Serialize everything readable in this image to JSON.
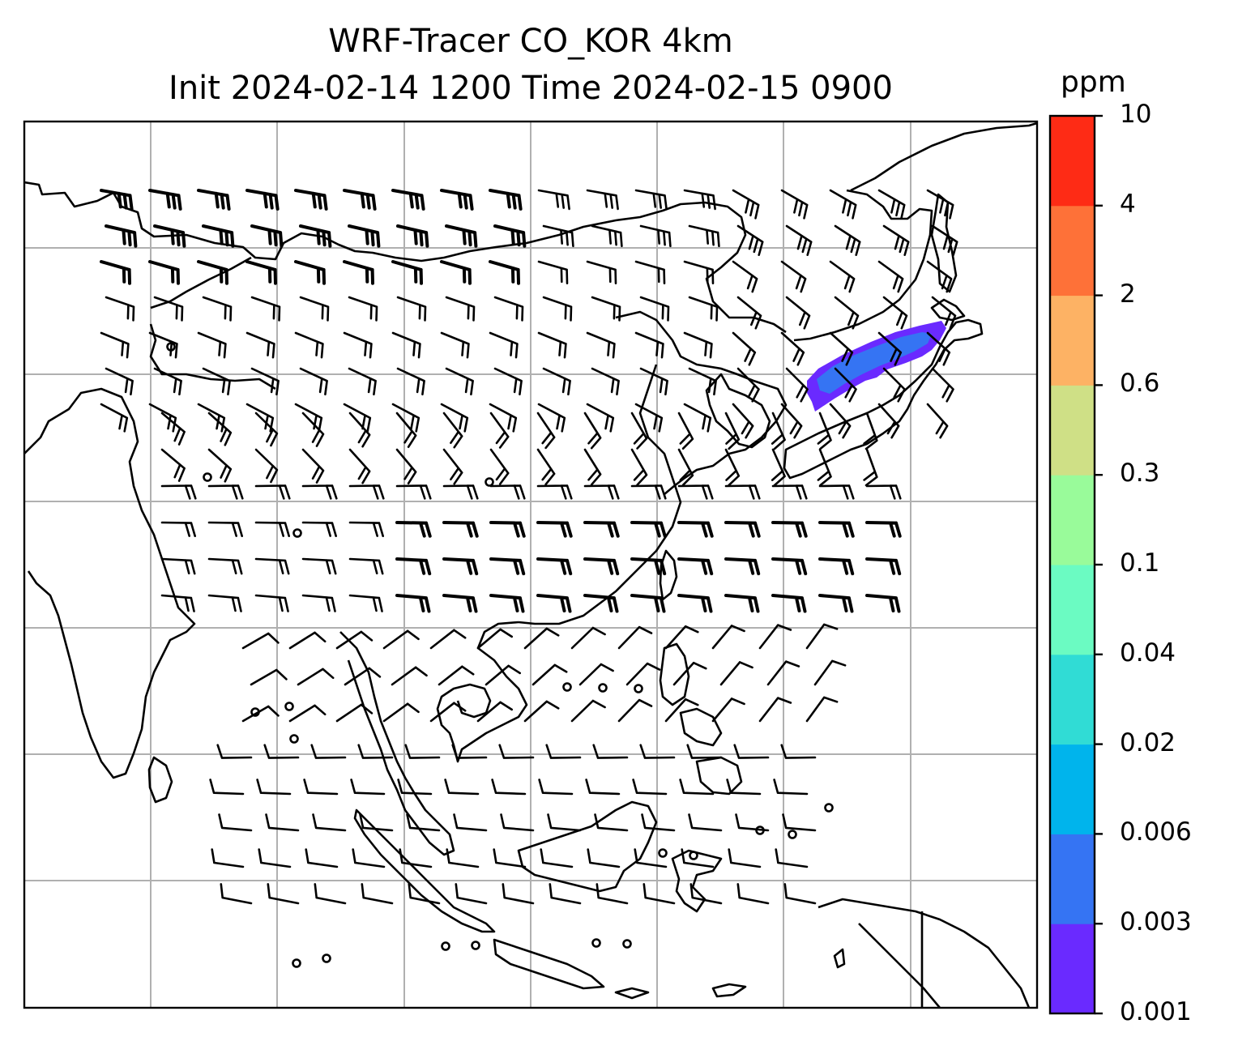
{
  "title": {
    "line1": "WRF-Tracer CO_KOR 4km",
    "line2": "Init 2024-02-14 1200 Time 2024-02-15 0900"
  },
  "colorbar": {
    "unit": "ppm",
    "tick_labels": [
      "0.001",
      "0.003",
      "0.006",
      "0.02",
      "0.04",
      "0.1",
      "0.3",
      "0.6",
      "2",
      "4",
      "10"
    ],
    "colors": [
      "#6a2aff",
      "#3574f3",
      "#00b4ec",
      "#30dcd5",
      "#6bfbc2",
      "#99fb9a",
      "#cfe086",
      "#fdb264",
      "#fe7138",
      "#fe2b15"
    ]
  },
  "map": {
    "gridlines": true,
    "plume": {
      "color": "#3574f3",
      "edge_color": "#6a2aff",
      "location": "East Sea between Korea and Japan"
    }
  }
}
